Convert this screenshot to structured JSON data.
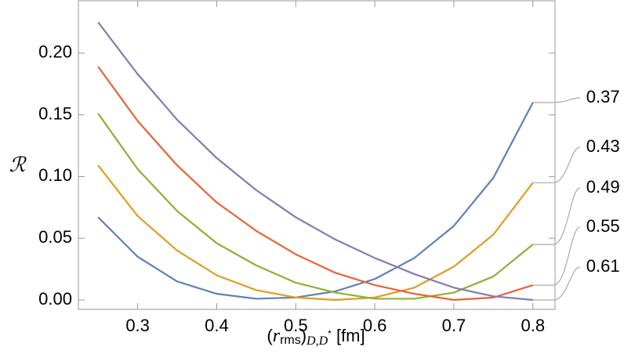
{
  "chart_data": {
    "type": "line",
    "xlabel": [
      "(",
      "r",
      "rms",
      ")",
      "D,D",
      "*",
      " [fm]"
    ],
    "ylabel": "ℛ",
    "x": [
      0.25,
      0.3,
      0.35,
      0.4,
      0.45,
      0.5,
      0.55,
      0.6,
      0.65,
      0.7,
      0.75,
      0.8
    ],
    "xlim": [
      0.225,
      0.828
    ],
    "ylim": [
      -0.0076,
      0.2424
    ],
    "xticks": [
      0.3,
      0.4,
      0.5,
      0.6,
      0.7,
      0.8
    ],
    "yticks": [
      {
        "value": 0,
        "label": "0.00"
      },
      {
        "value": 0.05,
        "label": "0.05"
      },
      {
        "value": 0.1,
        "label": "0.10"
      },
      {
        "value": 0.15,
        "label": "0.15"
      },
      {
        "value": 0.2,
        "label": "0.20"
      }
    ],
    "series": [
      {
        "name": "0.37",
        "color": "#5e81b5",
        "values": [
          0.067,
          0.035,
          0.015,
          0.005,
          0.001,
          0.002,
          0.007,
          0.017,
          0.034,
          0.06,
          0.099,
          0.16
        ]
      },
      {
        "name": "0.43",
        "color": "#e19c24",
        "values": [
          0.109,
          0.068,
          0.04,
          0.02,
          0.008,
          0.002,
          0.0,
          0.002,
          0.01,
          0.027,
          0.053,
          0.095
        ]
      },
      {
        "name": "0.49",
        "color": "#8fb032",
        "values": [
          0.151,
          0.106,
          0.072,
          0.046,
          0.028,
          0.014,
          0.006,
          0.001,
          0.001,
          0.006,
          0.019,
          0.045
        ]
      },
      {
        "name": "0.55",
        "color": "#eb6235",
        "values": [
          0.189,
          0.145,
          0.109,
          0.079,
          0.056,
          0.037,
          0.022,
          0.012,
          0.005,
          0.0,
          0.002,
          0.012
        ]
      },
      {
        "name": "0.61",
        "color": "#8778b3",
        "values": [
          0.225,
          0.183,
          0.146,
          0.115,
          0.089,
          0.067,
          0.049,
          0.034,
          0.021,
          0.01,
          0.003,
          0.0
        ]
      }
    ]
  }
}
